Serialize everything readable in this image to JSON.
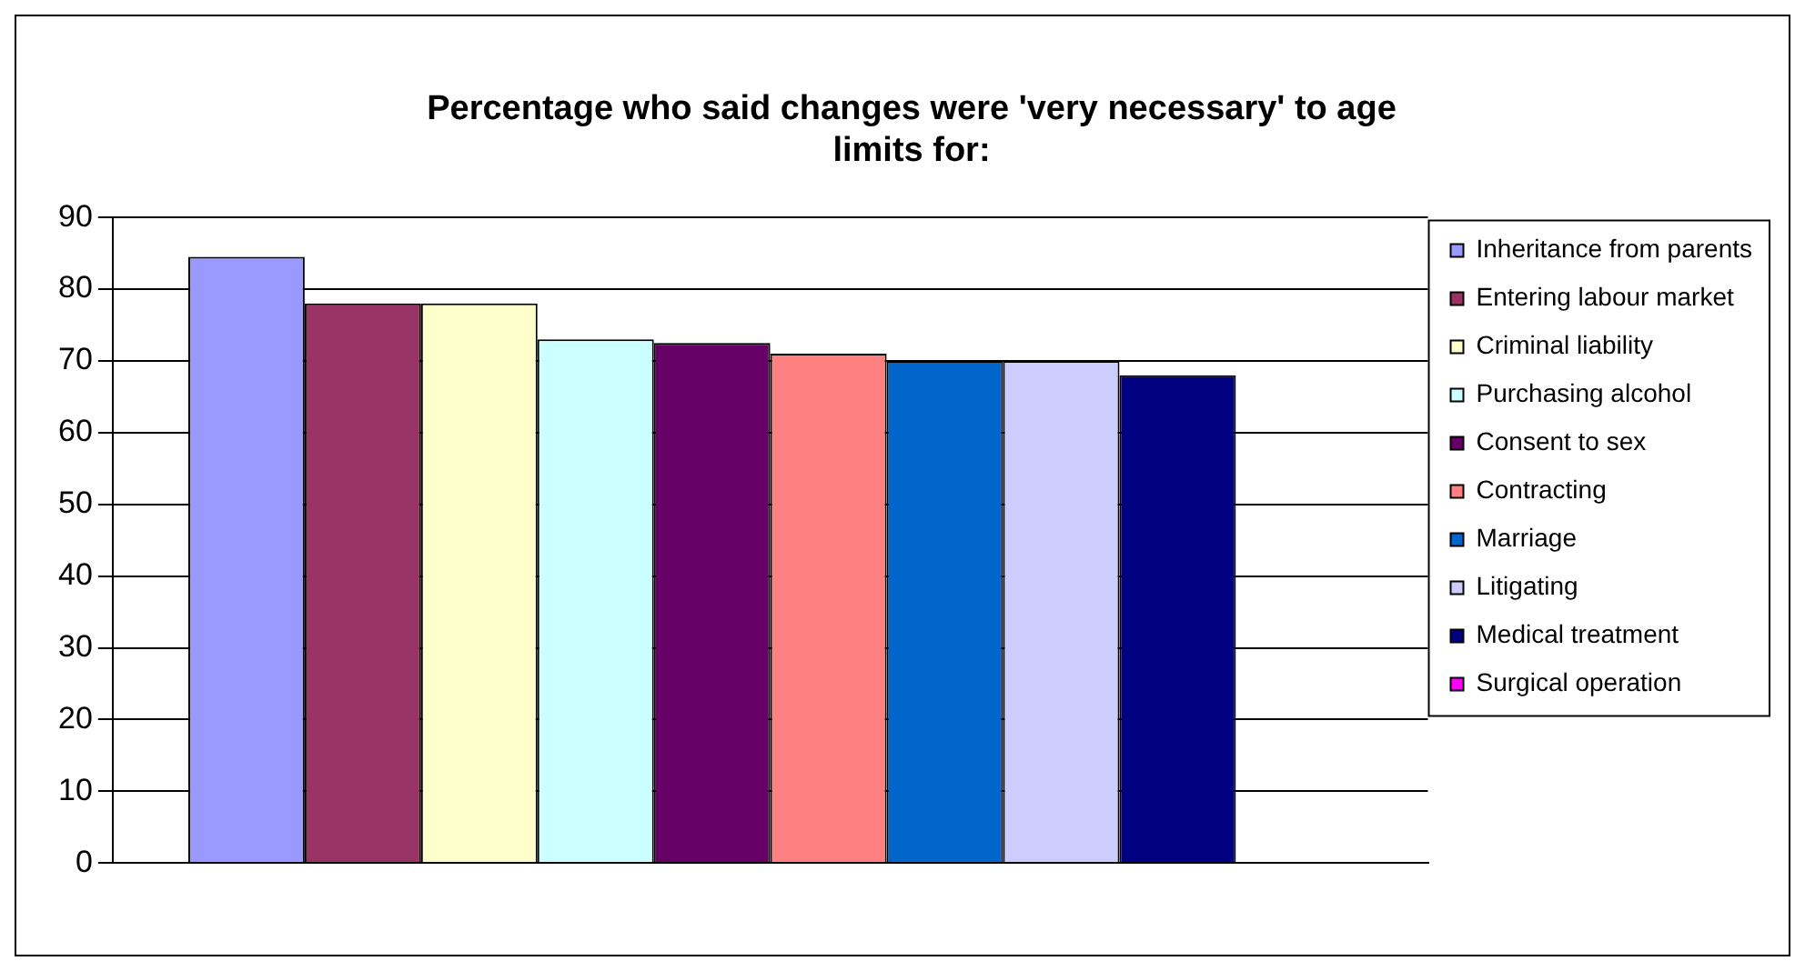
{
  "chart_data": {
    "type": "bar",
    "title": "Percentage who said changes were 'very necessary' to age limits for:",
    "categories": [
      null
    ],
    "series": [
      {
        "name": "Inheritance from parents",
        "color": "#9999ff",
        "values": [
          84.5
        ]
      },
      {
        "name": "Entering labour market",
        "color": "#993366",
        "values": [
          78
        ]
      },
      {
        "name": "Criminal liability",
        "color": "#ffffcc",
        "values": [
          78
        ]
      },
      {
        "name": "Purchasing alcohol",
        "color": "#ccffff",
        "values": [
          73
        ]
      },
      {
        "name": "Consent to sex",
        "color": "#660066",
        "values": [
          72.5
        ]
      },
      {
        "name": "Contracting",
        "color": "#ff8080",
        "values": [
          71
        ]
      },
      {
        "name": "Marriage",
        "color": "#0066cc",
        "values": [
          70
        ]
      },
      {
        "name": "Litigating",
        "color": "#ccccff",
        "values": [
          70
        ]
      },
      {
        "name": "Medical treatment",
        "color": "#000080",
        "values": [
          68
        ]
      },
      {
        "name": "Surgical operation",
        "color": "#ff00ff",
        "values": [
          null
        ]
      }
    ],
    "ylim": [
      0,
      90
    ],
    "yticks": [
      0,
      10,
      20,
      30,
      40,
      50,
      60,
      70,
      80,
      90
    ],
    "grid": "y",
    "legend": "right"
  }
}
